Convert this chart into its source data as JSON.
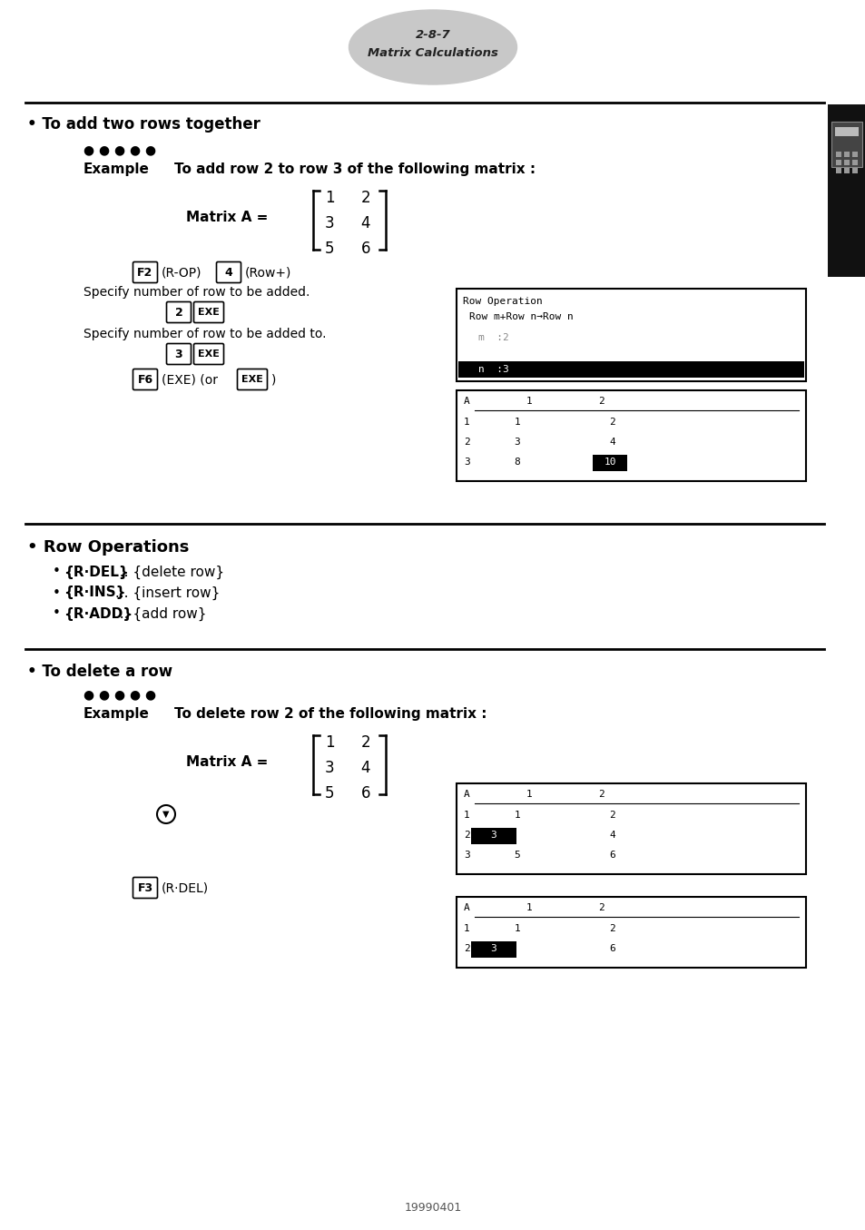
{
  "page_number": "2-8-7",
  "page_subtitle": "Matrix Calculations",
  "bg_color": "#ffffff",
  "section1_title": "• To add two rows together",
  "dots": "● ● ● ● ●",
  "example_label": "Example",
  "example1_text": "To add row 2 to row 3 of the following matrix :",
  "matrix_label": "Matrix A =",
  "matrix_values": [
    [
      1,
      2
    ],
    [
      3,
      4
    ],
    [
      5,
      6
    ]
  ],
  "key_f2": "F2",
  "key_rop_text": "(R-OP)",
  "key_4": "4",
  "key_rowplus_text": "(Row+)",
  "specify_add": "Specify number of row to be added.",
  "key_2": "2",
  "key_exe": "EXE",
  "specify_addto": "Specify number of row to be added to.",
  "key_3": "3",
  "key_f6": "F6",
  "key_exe_text": "(EXE) (or",
  "key_exe2": "EXE",
  "key_exe_end": ")",
  "screen1_line1": "Row Operation",
  "screen1_line2": "Row m+Row n→Row n",
  "screen1_m": "m  :2",
  "screen1_n": "n  :3",
  "section2_title": "• Row Operations",
  "bullet1_key": "{R·DEL}",
  "bullet1_rest": " ... {delete row}",
  "bullet2_key": "{R·INS}",
  "bullet2_rest": " ... {insert row}",
  "bullet3_key": "{R·ADD}",
  "bullet3_rest": " ... {add row}",
  "section3_title": "• To delete a row",
  "dots3": "● ● ● ● ●",
  "example3_label": "Example",
  "example3_text": "To delete row 2 of the following matrix :",
  "matrix3_label": "Matrix A =",
  "matrix3_values": [
    [
      1,
      2
    ],
    [
      3,
      4
    ],
    [
      5,
      6
    ]
  ],
  "key_f3": "F3",
  "key_rdel_text": "(R·DEL)",
  "footer": "19990401",
  "tab_color": "#1a1a1a",
  "line_color": "#000000"
}
